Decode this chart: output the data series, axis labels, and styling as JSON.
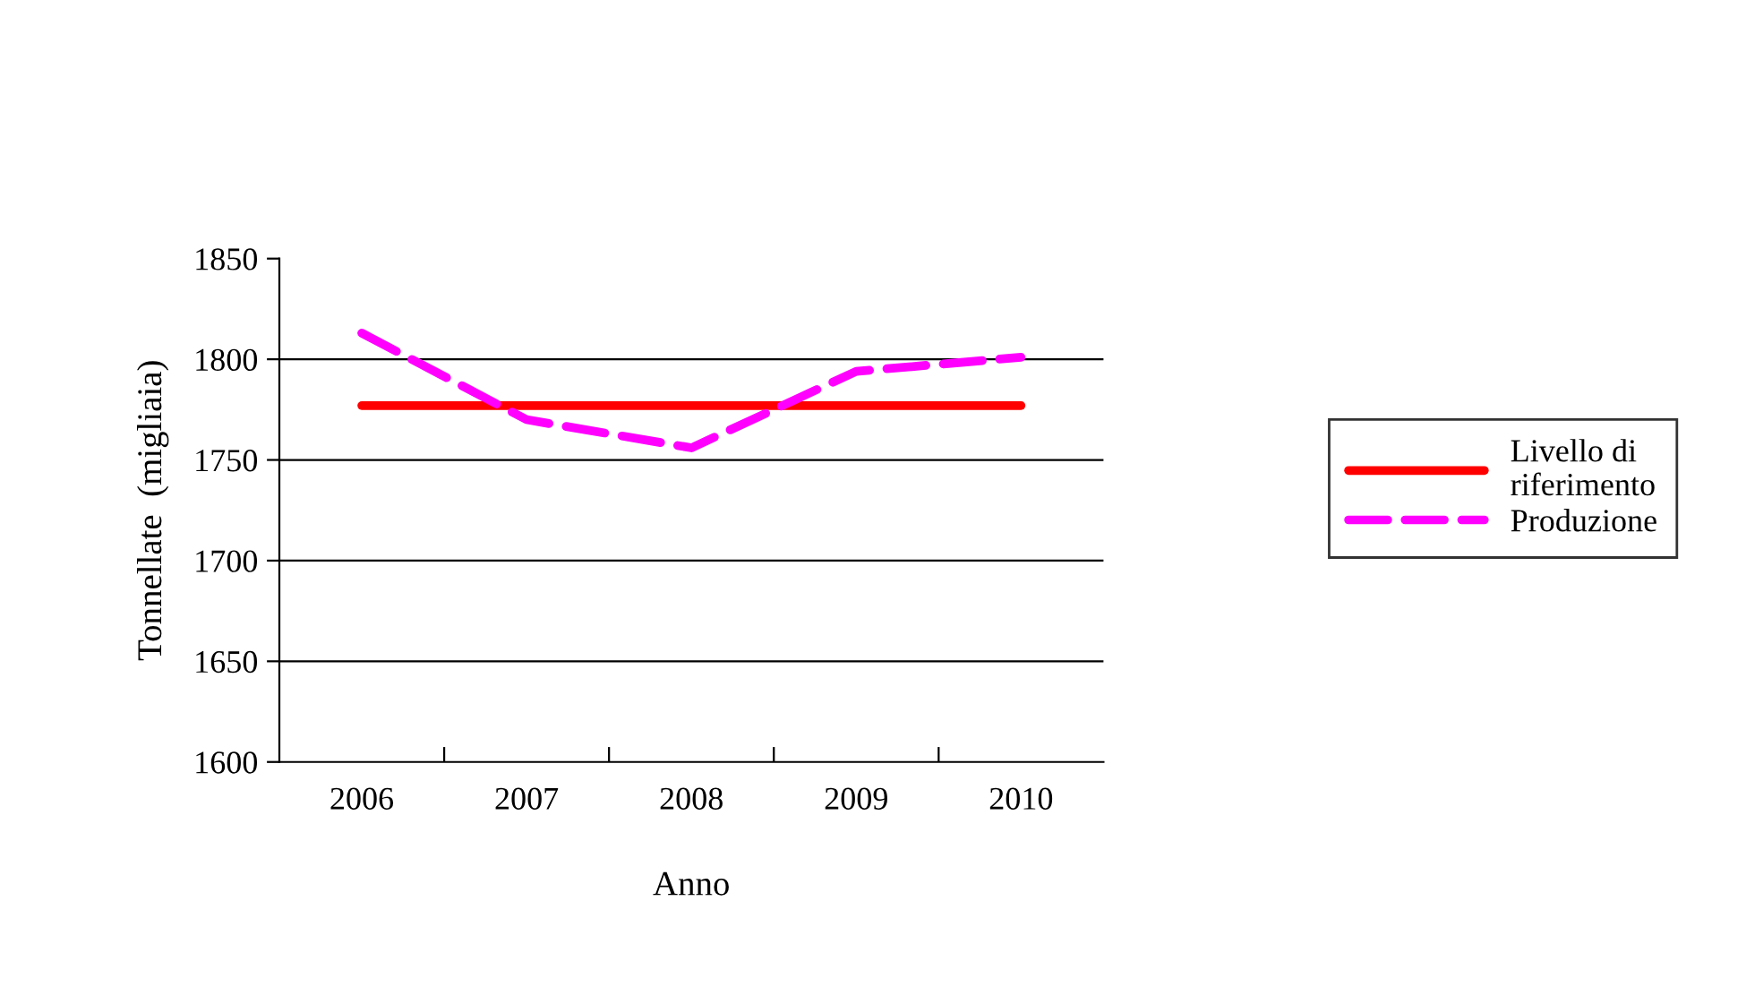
{
  "chart_data": {
    "type": "line",
    "xlabel": "Anno",
    "ylabel": "Tonnellate  (migliaia)",
    "categories": [
      "2006",
      "2007",
      "2008",
      "2009",
      "2010"
    ],
    "series": [
      {
        "name": "Livello di\nriferimento",
        "color": "#ff0000",
        "line_style": "solid",
        "values": [
          1777,
          1777,
          1777,
          1777,
          1777
        ]
      },
      {
        "name": "Produzione",
        "color": "#ff00ff",
        "line_style": "dashed",
        "values": [
          1813,
          1770,
          1756,
          1794,
          1801
        ]
      }
    ],
    "ylim": [
      1600,
      1850
    ],
    "yticks": [
      1600,
      1650,
      1700,
      1750,
      1800,
      1850
    ],
    "grid": "y",
    "legend": "right",
    "marker": "none"
  }
}
